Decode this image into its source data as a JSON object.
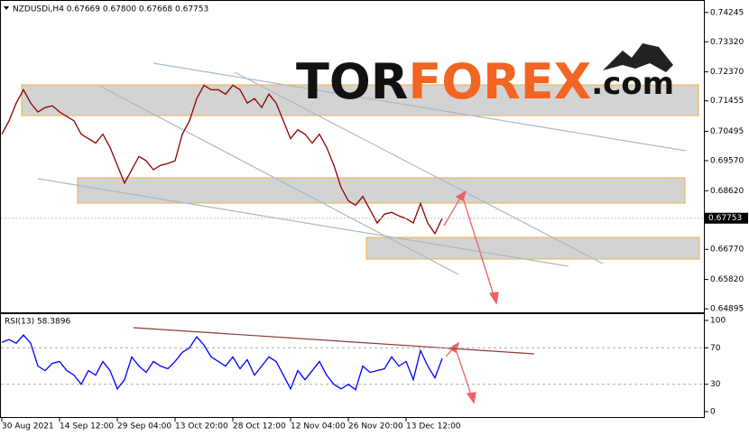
{
  "header": "NZDUSDi,H4  0.67669 0.67800 0.67668 0.67753",
  "logo": {
    "parts": [
      "TOR",
      "FOREX",
      ".com"
    ]
  },
  "chart_data": [
    {
      "type": "line",
      "current_price": 0.67753,
      "ylim": [
        0.64755,
        0.74609
      ],
      "yticks": [
        0.74245,
        {
          "value": 0.7332,
          "label": "0.73320"
        },
        {
          "value": 0.7237,
          "label": "0.72370"
        },
        0.71455,
        0.70495,
        {
          "value": 0.6957,
          "label": "0.69570"
        },
        {
          "value": 0.6862,
          "label": "0.68620"
        },
        {
          "value": 0.6677,
          "label": "0.66770"
        },
        {
          "value": 0.6582,
          "label": "0.65820"
        },
        0.64895
      ],
      "series": [
        {
          "name": "NZDUSDi",
          "color": "#8b0000",
          "values": [
            0.70404,
            0.70825,
            0.71386,
            0.71806,
            0.71386,
            0.71105,
            0.71245,
            0.71301,
            0.71105,
            0.70965,
            0.70825,
            0.70404,
            0.70264,
            0.70124,
            0.70404,
            0.69984,
            0.69423,
            0.68863,
            0.69283,
            0.69704,
            0.69564,
            0.69283,
            0.69423,
            0.6948,
            0.69564,
            0.70404,
            0.70825,
            0.71526,
            0.71946,
            0.71806,
            0.71806,
            0.71666,
            0.71946,
            0.71806,
            0.71386,
            0.71526,
            0.71245,
            0.71666,
            0.71386,
            0.70825,
            0.70264,
            0.70545,
            0.70404,
            0.70124,
            0.70404,
            0.69984,
            0.69423,
            0.68723,
            0.68302,
            0.68162,
            0.68442,
            0.68022,
            0.67601,
            0.67882,
            0.67938,
            0.67826,
            0.67742,
            0.67601,
            0.68218,
            0.67601,
            0.67265,
            0.67753
          ]
        }
      ]
    },
    {
      "type": "line",
      "title": "RSI(13) 58.3896",
      "ylim": [
        -6.9,
        106.9
      ],
      "yticks": [
        100,
        70,
        30,
        0
      ],
      "categories": [
        "30 Aug 2021",
        null,
        null,
        null,
        null,
        null,
        null,
        null,
        "14 Sep 12:00",
        null,
        null,
        null,
        null,
        null,
        null,
        null,
        "29 Sep 04:00",
        null,
        null,
        null,
        null,
        null,
        null,
        null,
        "13 Oct 20:00",
        null,
        null,
        null,
        null,
        null,
        null,
        null,
        "28 Oct 12:00",
        null,
        null,
        null,
        null,
        null,
        null,
        null,
        "12 Nov 04:00",
        null,
        null,
        null,
        null,
        null,
        null,
        null,
        "26 Nov 20:00",
        null,
        null,
        null,
        null,
        null,
        null,
        null,
        "13 Dec 12:00",
        null,
        null,
        null,
        null,
        null
      ],
      "series": [
        {
          "name": "RSI(13)",
          "color": "#0000ff",
          "values": [
            76,
            79,
            75,
            84,
            75,
            50,
            45,
            53,
            55,
            45,
            40,
            30,
            45,
            40,
            55,
            45,
            25,
            35,
            60,
            50,
            43,
            55,
            50,
            47,
            55,
            65,
            70,
            82,
            73,
            60,
            55,
            50,
            60,
            47,
            57,
            40,
            50,
            60,
            55,
            40,
            25,
            45,
            35,
            45,
            55,
            40,
            30,
            25,
            30,
            24,
            50,
            43,
            45,
            47,
            60,
            50,
            55,
            35,
            67,
            50,
            37,
            58.3896
          ]
        }
      ]
    }
  ]
}
